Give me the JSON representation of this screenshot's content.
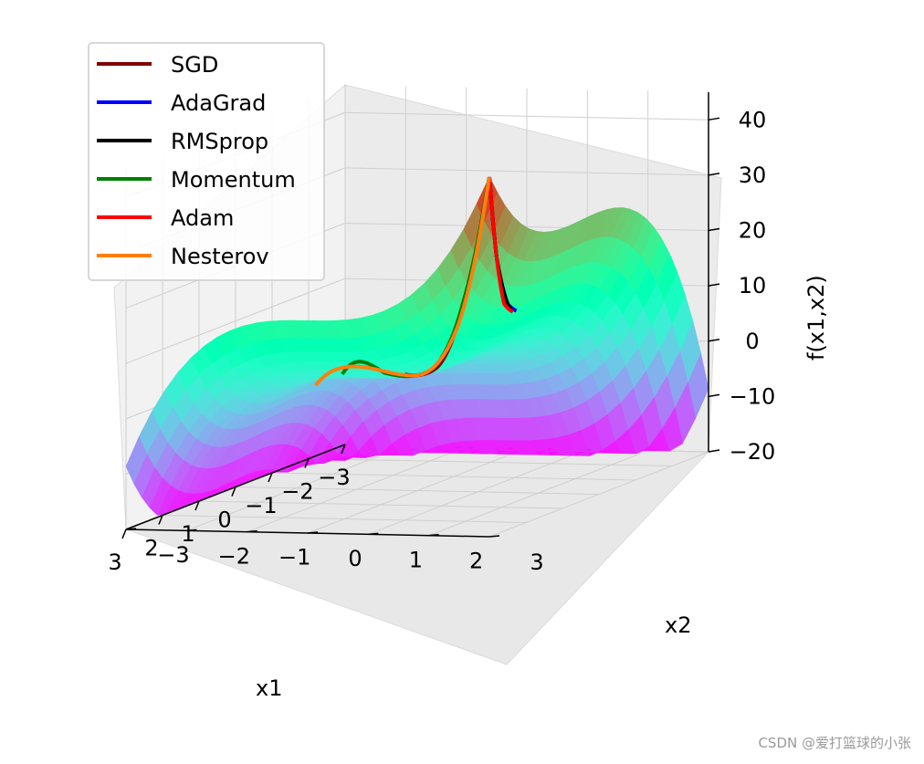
{
  "chart_data": {
    "type": "surface3d",
    "zlabel": "f(x1,x2)",
    "xlabel": "x1",
    "ylabel": "x2",
    "x_ticks": [
      "−3",
      "−2",
      "−1",
      "0",
      "1",
      "2",
      "3"
    ],
    "y_ticks": [
      "−3",
      "−2",
      "−1",
      "0",
      "1",
      "2",
      "3"
    ],
    "z_ticks": [
      "−20",
      "−10",
      "0",
      "10",
      "20",
      "30",
      "40"
    ],
    "xlim": [
      -3,
      3
    ],
    "ylim": [
      -3,
      3
    ],
    "zlim": [
      -20,
      45
    ],
    "colormap": "rainbow",
    "grid": true,
    "legend_position": "top-left",
    "series": [
      {
        "name": "SGD",
        "color": "#800000",
        "x": [
          3.0,
          2.4,
          1.6,
          1.0
        ],
        "y": [
          3.0,
          2.2,
          1.3,
          0.4
        ]
      },
      {
        "name": "AdaGrad",
        "color": "#0000ff",
        "x": [
          3.0,
          2.3,
          1.5,
          1.1
        ],
        "y": [
          3.0,
          2.7,
          2.4,
          2.3
        ]
      },
      {
        "name": "RMSprop",
        "color": "#000000",
        "x": [
          3.0,
          2.3,
          1.5,
          1.2
        ],
        "y": [
          3.0,
          2.7,
          2.4,
          2.3
        ]
      },
      {
        "name": "Momentum",
        "color": "#008000",
        "x": [
          3.0,
          2.4,
          1.6,
          0.9,
          -0.6
        ],
        "y": [
          3.0,
          2.2,
          1.2,
          0.0,
          -1.6
        ]
      },
      {
        "name": "Adam",
        "color": "#ff0000",
        "x": [
          3.0,
          2.3,
          1.6,
          1.2
        ],
        "y": [
          3.0,
          2.7,
          2.4,
          2.3
        ]
      },
      {
        "name": "Nesterov",
        "color": "#ff7f0e",
        "x": [
          3.0,
          2.2,
          1.1,
          0.2,
          -0.2
        ],
        "y": [
          3.0,
          2.0,
          0.5,
          -1.2,
          -1.8
        ]
      }
    ]
  },
  "watermark": "CSDN @爱打篮球的小张"
}
